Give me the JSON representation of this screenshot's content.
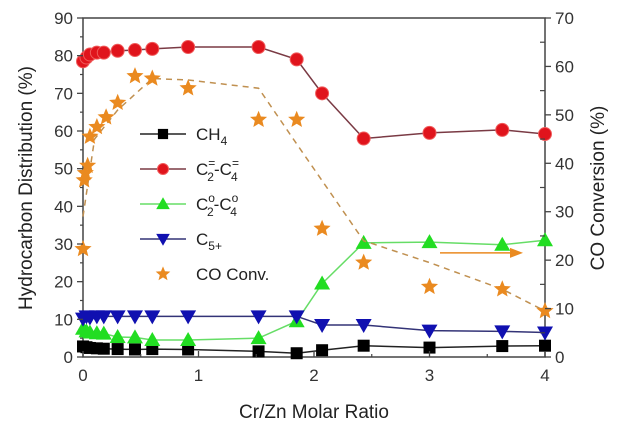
{
  "chart_data": {
    "type": "line",
    "title": "",
    "xlabel": "Cr/Zn Molar Ratio",
    "ylabel": "Hydrocarbon Distribution (%)",
    "y2label": "CO Conversion (%)",
    "xlim": [
      0,
      4
    ],
    "ylim": [
      0,
      90
    ],
    "y2lim": [
      0,
      70
    ],
    "xticks": [
      "0",
      "1",
      "2",
      "3",
      "4"
    ],
    "yticks": [
      "0",
      "10",
      "20",
      "30",
      "40",
      "50",
      "60",
      "70",
      "80",
      "90"
    ],
    "y2ticks": [
      "0",
      "10",
      "20",
      "30",
      "40",
      "50",
      "60",
      "70"
    ],
    "grid": false,
    "legend_position": "center-left",
    "series": [
      {
        "name": "CH4",
        "legend_main": "CH",
        "legend_sub": "4",
        "legend_sup": "",
        "axis": "left",
        "marker": "square",
        "color": "#000000",
        "line_color": "#222222",
        "line_style": "solid",
        "x": [
          0,
          0.03,
          0.06,
          0.12,
          0.18,
          0.3,
          0.45,
          0.6,
          0.91,
          1.52,
          1.85,
          2.07,
          2.43,
          3.0,
          3.63,
          4.0
        ],
        "y": [
          2.8,
          2.6,
          2.4,
          2.3,
          2.2,
          2.1,
          2.0,
          2.1,
          2.0,
          1.5,
          1.0,
          1.8,
          3.0,
          2.5,
          2.9,
          3.0
        ]
      },
      {
        "name": "C2=-C4=",
        "legend_main": "C",
        "legend_sub": "2",
        "legend_sup": "=",
        "legend_main2": "-C",
        "legend_sub2": "4",
        "legend_sup2": "=",
        "axis": "left",
        "marker": "circle",
        "color": "#e0141c",
        "line_color": "#7a3a44",
        "line_style": "solid",
        "x": [
          0,
          0.03,
          0.06,
          0.12,
          0.18,
          0.3,
          0.45,
          0.6,
          0.91,
          1.52,
          1.85,
          2.07,
          2.43,
          3.0,
          3.63,
          4.0
        ],
        "y": [
          78.5,
          79.5,
          80.3,
          80.8,
          80.8,
          81.3,
          81.5,
          81.8,
          82.3,
          82.3,
          79.0,
          70.0,
          58.0,
          59.5,
          60.3,
          59.2
        ]
      },
      {
        "name": "C2o-C4o",
        "legend_main": "C",
        "legend_sub": "2",
        "legend_sup": "o",
        "legend_main2": "-C",
        "legend_sub2": "4",
        "legend_sup2": "o",
        "axis": "left",
        "marker": "triangle-up",
        "color": "#22dd22",
        "line_color": "#66dd66",
        "line_style": "solid",
        "x": [
          0,
          0.03,
          0.06,
          0.12,
          0.18,
          0.3,
          0.45,
          0.6,
          0.91,
          1.52,
          1.85,
          2.07,
          2.43,
          3.0,
          3.63,
          4.0
        ],
        "y": [
          7.5,
          6.8,
          6.5,
          6.3,
          6.2,
          5.3,
          5.2,
          4.5,
          4.5,
          5.0,
          9.5,
          19.5,
          30.3,
          30.5,
          29.8,
          31.0
        ]
      },
      {
        "name": "C5+",
        "legend_main": "C",
        "legend_sub": "5+",
        "legend_sup": "",
        "axis": "left",
        "marker": "triangle-down",
        "color": "#1010b0",
        "line_color": "#333377",
        "line_style": "solid",
        "x": [
          0,
          0.03,
          0.06,
          0.12,
          0.18,
          0.3,
          0.45,
          0.6,
          0.91,
          1.52,
          1.85,
          2.07,
          2.43,
          3.0,
          3.63,
          4.0
        ],
        "y": [
          10.2,
          10.8,
          10.5,
          10.8,
          10.8,
          10.8,
          10.8,
          10.8,
          10.8,
          10.8,
          10.8,
          8.5,
          8.5,
          7.0,
          6.8,
          6.5
        ]
      },
      {
        "name": "CO Conv.",
        "legend_main": "CO Conv.",
        "legend_sub": "",
        "legend_sup": "",
        "axis": "right",
        "marker": "star",
        "color": "#ea8a20",
        "line_color": "#c09050",
        "line_style": "dashed",
        "x": [
          0,
          0.01,
          0.02,
          0.04,
          0.06,
          0.12,
          0.2,
          0.3,
          0.45,
          0.6,
          0.91,
          1.52,
          1.85,
          2.07,
          2.43,
          3.0,
          3.63,
          4.0
        ],
        "y": [
          22.3,
          36.5,
          38.0,
          39.5,
          45.5,
          47.5,
          49.5,
          52.5,
          58.0,
          57.5,
          55.5,
          49.0,
          49.0,
          26.5,
          19.5,
          14.5,
          14.0,
          9.5
        ]
      }
    ],
    "annotations": [
      {
        "type": "arrow",
        "direction": "right",
        "meaning": "CO Conv. refers to right axis",
        "color": "#ea8a20"
      }
    ]
  }
}
